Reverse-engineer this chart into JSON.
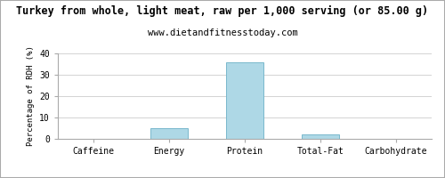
{
  "title": "Turkey from whole, light meat, raw per 1,000 serving (or 85.00 g)",
  "subtitle": "www.dietandfitnesstoday.com",
  "categories": [
    "Caffeine",
    "Energy",
    "Protein",
    "Total-Fat",
    "Carbohydrate"
  ],
  "values": [
    0,
    5.2,
    36,
    2.0,
    0.1
  ],
  "bar_color": "#aed8e6",
  "bar_edge_color": "#7ab8cc",
  "ylabel": "Percentage of RDH (%)",
  "ylim": [
    0,
    40
  ],
  "yticks": [
    0,
    10,
    20,
    30,
    40
  ],
  "background_color": "#ffffff",
  "grid_color": "#cccccc",
  "title_fontsize": 8.5,
  "subtitle_fontsize": 7.5,
  "tick_fontsize": 7,
  "ylabel_fontsize": 6.5,
  "border_color": "#aaaaaa"
}
